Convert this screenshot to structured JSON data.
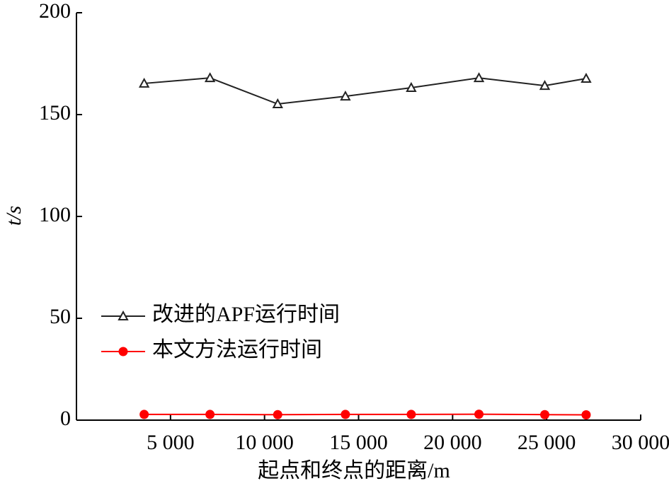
{
  "chart_data": {
    "type": "line",
    "x_label": "起点和终点的距离/m",
    "y_label": "t/s",
    "xlim": [
      0,
      30000
    ],
    "xticks": [
      {
        "value": 5000,
        "label": "5 000"
      },
      {
        "value": 10000,
        "label": "10 000"
      },
      {
        "value": 15000,
        "label": "15 000"
      },
      {
        "value": 20000,
        "label": "20 000"
      },
      {
        "value": 25000,
        "label": "25 000"
      },
      {
        "value": 30000,
        "label": "30 000"
      }
    ],
    "ylim": [
      0,
      200
    ],
    "yticks": [
      0,
      50,
      100,
      150,
      200
    ],
    "x": [
      3600,
      7100,
      10700,
      14300,
      17800,
      21400,
      24900,
      27100
    ],
    "series": [
      {
        "name": "改进的APF运行时间",
        "color": "#222222",
        "marker": "triangle",
        "values": [
          165.3,
          168,
          155.2,
          159,
          163.2,
          168,
          164.2,
          167.7
        ]
      },
      {
        "name": "本文方法运行时间",
        "color": "#ff0000",
        "marker": "circle",
        "values": [
          2.8,
          2.8,
          2.7,
          2.8,
          2.8,
          2.9,
          2.7,
          2.6
        ]
      }
    ],
    "legend": "left-middle"
  }
}
